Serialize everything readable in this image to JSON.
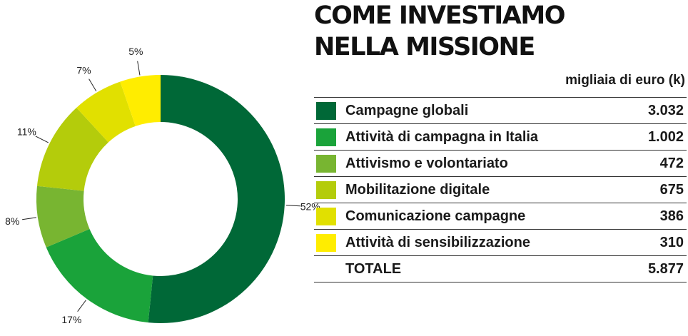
{
  "header": {
    "title_line1": "COME INVESTIAMO",
    "title_line2": "NELLA MISSIONE",
    "unit": "migliaia di euro (k)"
  },
  "chart_data": {
    "type": "pie",
    "categories": [
      "Campagne globali",
      "Attività di campagna in Italia",
      "Attivismo e volontariato",
      "Mobilitazione digitale",
      "Comunicazione campagne",
      "Attività di sensibilizzazione"
    ],
    "values": [
      3032,
      1002,
      472,
      675,
      386,
      310
    ],
    "display_values": [
      "3.032",
      "1.002",
      "472",
      "675",
      "386",
      "310"
    ],
    "percent_labels": [
      "52%",
      "17%",
      "8%",
      "11%",
      "7%",
      "5%"
    ],
    "colors": [
      "#006837",
      "#1aa33a",
      "#78b531",
      "#b4cc0b",
      "#e1e000",
      "#ffed00"
    ],
    "total_label": "TOTALE",
    "total_value": "5.877"
  }
}
